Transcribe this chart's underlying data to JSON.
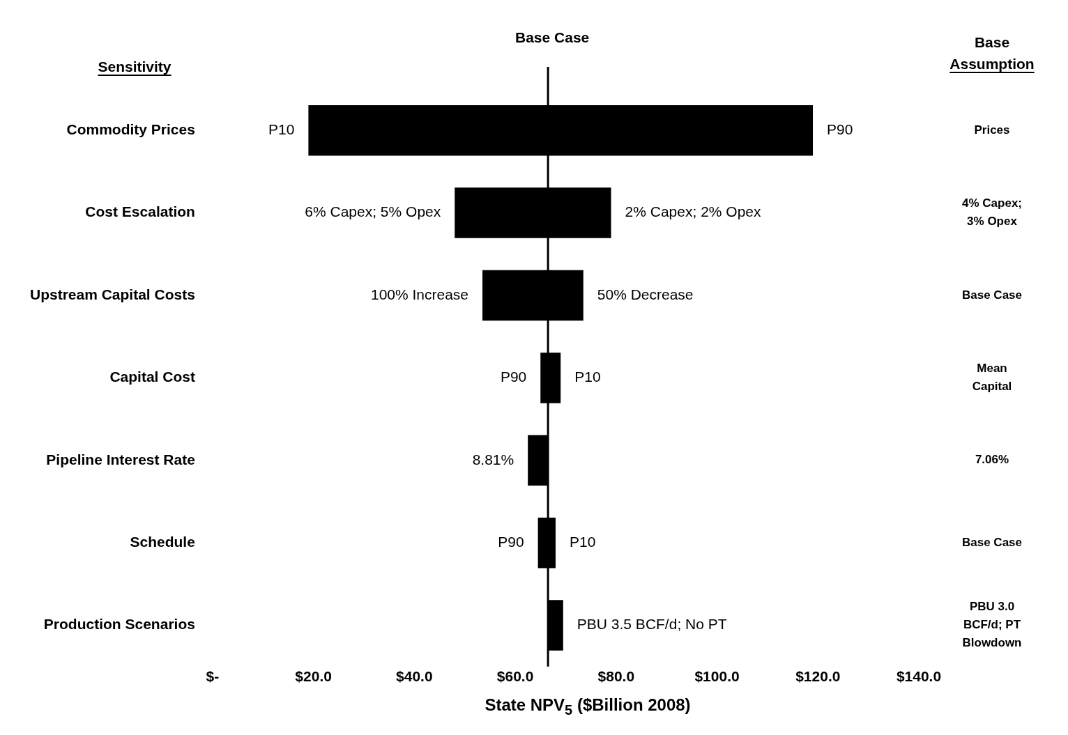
{
  "chart_data": {
    "type": "bar",
    "orientation": "horizontal",
    "ylabel": "Sensitivity",
    "y2label": "Base Assumption",
    "xlabel": "State NPV$_{5}$ ($Billion 2008)",
    "categories": [
      "Commodity Prices",
      "Cost Escalation",
      "Upstream Capital Costs",
      "Capital Cost",
      "Pipeline Interest Rate",
      "Schedule",
      "Production Scenarios"
    ],
    "base": [
      19,
      48,
      53.5,
      65,
      62.5,
      64.5,
      66.5
    ],
    "values": [
      100,
      31,
      20,
      4,
      4,
      3.5,
      3
    ],
    "color": "#000000",
    "xlim": [
      0,
      140
    ],
    "xticks": [
      {
        "value": 0,
        "label": "$-"
      },
      {
        "value": 20,
        "label": "$20.0"
      },
      {
        "value": 40,
        "label": "$40.0"
      },
      {
        "value": 60,
        "label": "$60.0"
      },
      {
        "value": 80,
        "label": "$80.0"
      },
      {
        "value": 100,
        "label": "$100.0"
      },
      {
        "value": 120,
        "label": "$120.0"
      },
      {
        "value": 140,
        "label": "$140.0"
      }
    ],
    "grid": false,
    "legend": false,
    "ref_lines": [
      {
        "axis": "x",
        "value": 66.5,
        "label": "Base Case",
        "color": "#000000"
      }
    ],
    "annotations": [
      {
        "text": "P10",
        "x": 19,
        "y": "Commodity Prices"
      },
      {
        "text": "P90",
        "x": 119,
        "y": "Commodity Prices"
      },
      {
        "text": "6% Capex; 5% Opex",
        "x": 48,
        "y": "Cost Escalation"
      },
      {
        "text": "2% Capex; 2% Opex",
        "x": 79,
        "y": "Cost Escalation"
      },
      {
        "text": "100% Increase",
        "x": 53.5,
        "y": "Upstream Capital Costs"
      },
      {
        "text": "50% Decrease",
        "x": 73.5,
        "y": "Upstream Capital Costs"
      },
      {
        "text": "P90",
        "x": 65,
        "y": "Capital Cost"
      },
      {
        "text": "P10",
        "x": 69,
        "y": "Capital Cost"
      },
      {
        "text": "8.81%",
        "x": 62.5,
        "y": "Pipeline Interest Rate"
      },
      {
        "text": "P90",
        "x": 64.5,
        "y": "Schedule"
      },
      {
        "text": "P10",
        "x": 68,
        "y": "Schedule"
      },
      {
        "text": "PBU 3.5 BCF/d; No PT",
        "x": 69.5,
        "y": "Production Scenarios"
      },
      "Prices",
      "4% Capex; 3% Opex",
      "Base Case",
      "Mean Capital",
      "7.06%",
      "Base Case",
      "PBU 3.0 BCF/d; PT Blowdown"
    ]
  }
}
